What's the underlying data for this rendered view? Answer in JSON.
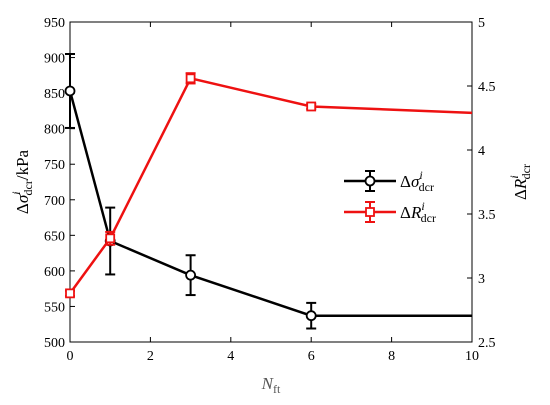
{
  "chart_data": {
    "type": "line",
    "xlabel": {
      "base": "N",
      "sub": "ft"
    },
    "ylabel_left": {
      "delta": "Δ",
      "symbol": "σ",
      "sup": "i",
      "sub": "dcr",
      "unit": "/kPa"
    },
    "ylabel_right": {
      "delta": "Δ",
      "symbol": "R",
      "sup": "i",
      "sub": "dcr"
    },
    "xlim": [
      0,
      10
    ],
    "ylim_left": [
      500,
      950
    ],
    "ylim_right": [
      2.5,
      5
    ],
    "x_ticks": [
      "0",
      "2",
      "4",
      "6",
      "8",
      "10"
    ],
    "y_left_ticks": [
      "500",
      "550",
      "600",
      "650",
      "700",
      "750",
      "800",
      "850",
      "900",
      "950"
    ],
    "y_right_ticks": [
      "2.5",
      "3",
      "3.5",
      "4",
      "4.5",
      "5"
    ],
    "legend_position": "center-right",
    "series": [
      {
        "axis": "left",
        "color": "#000000",
        "marker": "circle",
        "legend": {
          "delta": "Δ",
          "symbol": "σ",
          "sup": "i",
          "sub": "dcr"
        },
        "points": [
          {
            "x": 0,
            "y": 853,
            "err": 52
          },
          {
            "x": 1,
            "y": 642,
            "err": 47
          },
          {
            "x": 3,
            "y": 594,
            "err": 28
          },
          {
            "x": 6,
            "y": 537,
            "err": 18
          },
          {
            "x": 10,
            "y": 537
          }
        ]
      },
      {
        "axis": "right",
        "color": "#ee1111",
        "marker": "square",
        "legend": {
          "delta": "Δ",
          "symbol": "R",
          "sup": "i",
          "sub": "dcr"
        },
        "points": [
          {
            "x": 0,
            "y": 2.88,
            "err": 0.02
          },
          {
            "x": 1,
            "y": 3.31,
            "err": 0.05
          },
          {
            "x": 3,
            "y": 4.56,
            "err": 0.04
          },
          {
            "x": 6,
            "y": 4.34,
            "err": 0.02
          },
          {
            "x": 10,
            "y": 4.29
          }
        ]
      }
    ]
  }
}
